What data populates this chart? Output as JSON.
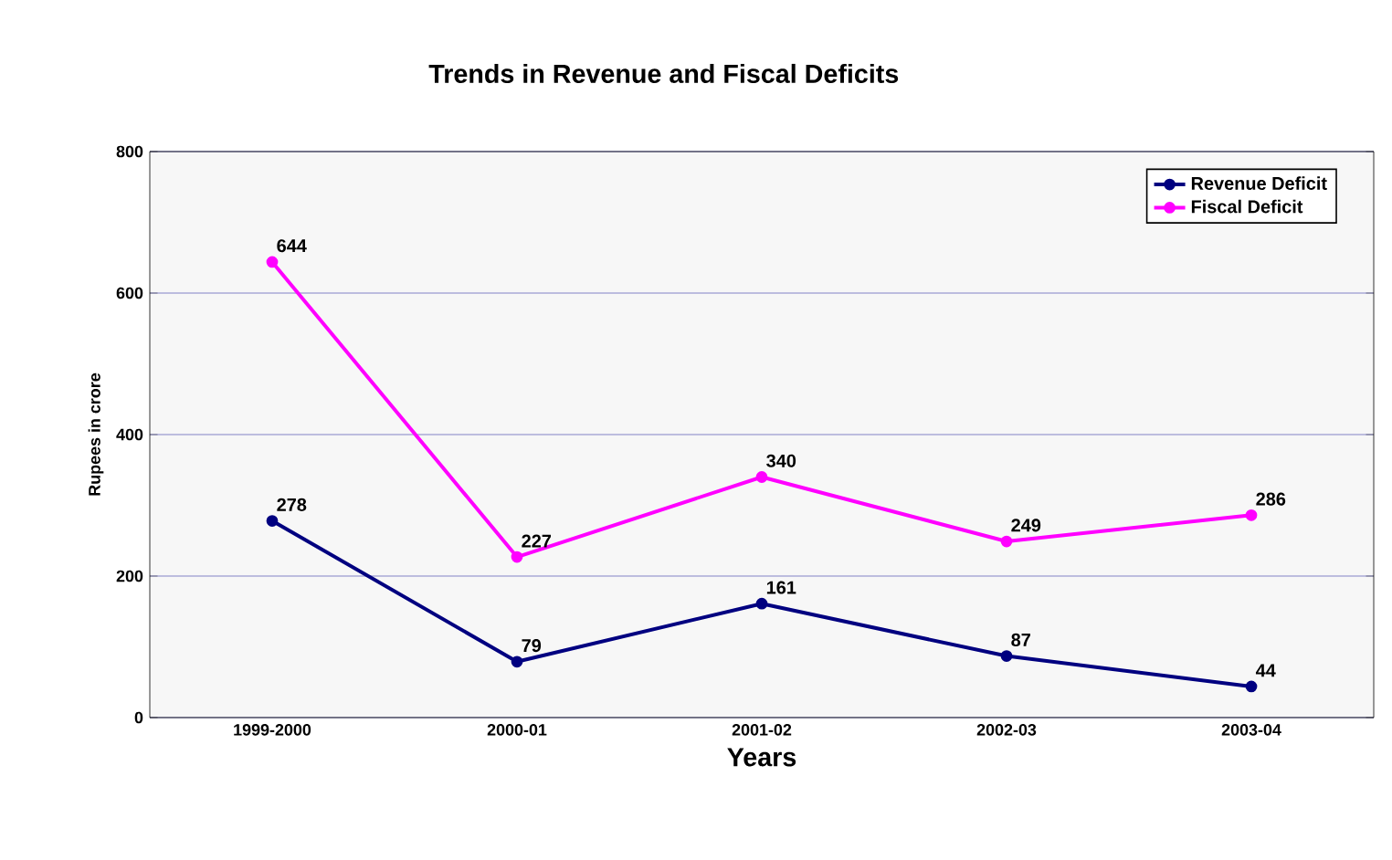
{
  "chart_data": {
    "type": "line",
    "title": "Trends in Revenue and Fiscal Deficits",
    "xlabel": "Years",
    "ylabel": "Rupees in crore",
    "categories": [
      "1999-2000",
      "2000-01",
      "2001-02",
      "2002-03",
      "2003-04"
    ],
    "series": [
      {
        "name": "Revenue Deficit",
        "color": "#000080",
        "values": [
          278,
          79,
          161,
          87,
          44
        ]
      },
      {
        "name": "Fiscal Deficit",
        "color": "#ff00ff",
        "values": [
          644,
          227,
          340,
          249,
          286
        ]
      }
    ],
    "ylim": [
      0,
      800
    ],
    "yticks": [
      0,
      200,
      400,
      600,
      800
    ],
    "grid": "y",
    "legend": "top right",
    "marker": "circle",
    "line_style": "solid",
    "data_labels": true
  }
}
